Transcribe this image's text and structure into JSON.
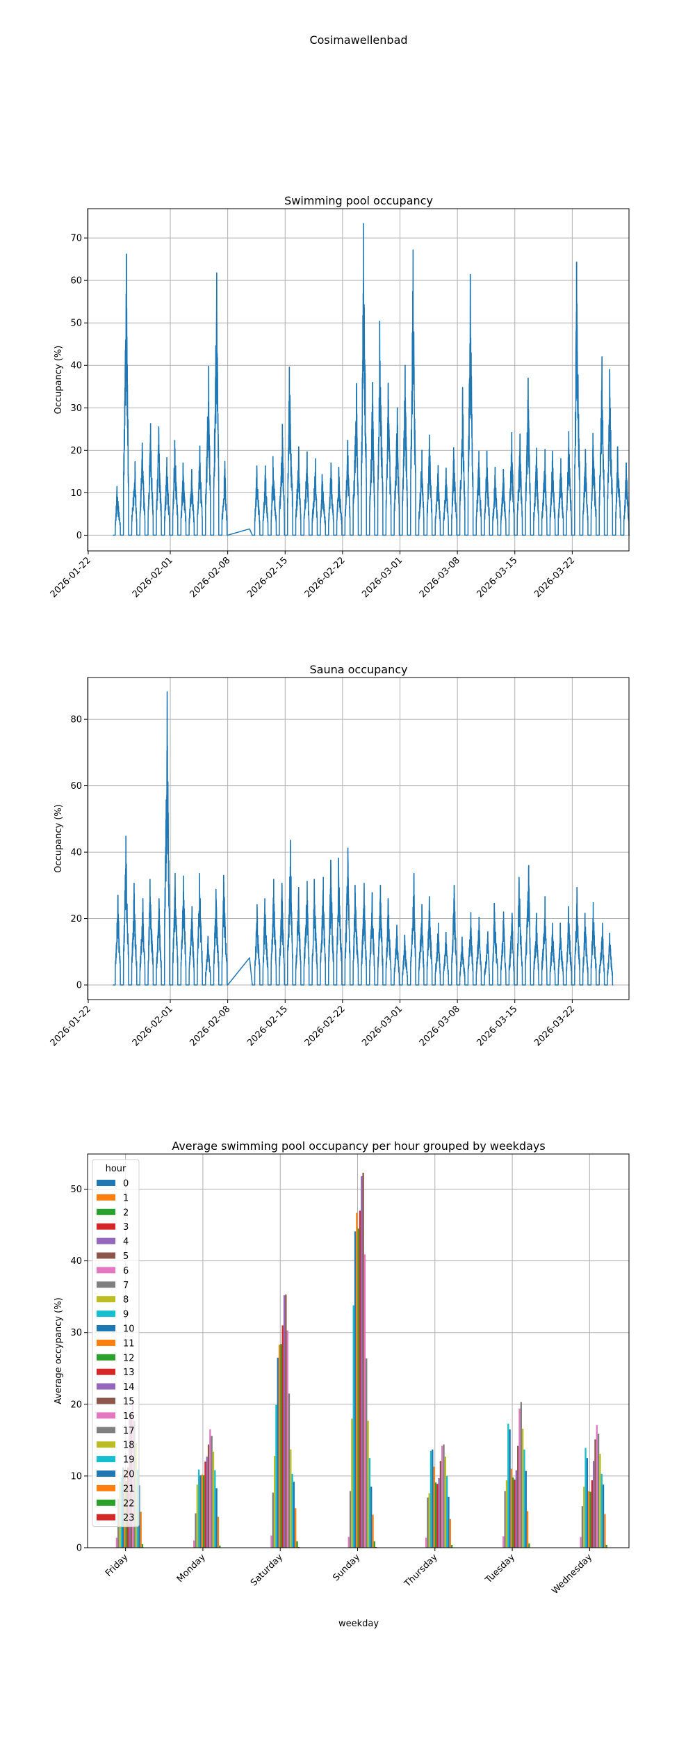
{
  "figure": {
    "suptitle": "Cosimawellenbad"
  },
  "chart_data": [
    {
      "id": "pool",
      "type": "line",
      "title": "Swimming pool occupancy",
      "xlabel": "",
      "ylabel": "Occupancy (%)",
      "x_type": "date",
      "xlim": [
        "2026-01-21T22:00",
        "2026-03-28T22:00"
      ],
      "ylim": [
        -3.7,
        76.9
      ],
      "xticks": [
        "2026-01-22",
        "2026-02-01",
        "2026-02-08",
        "2026-02-15",
        "2026-02-22",
        "2026-03-01",
        "2026-03-08",
        "2026-03-15",
        "2026-03-22"
      ],
      "yticks": [
        0,
        10,
        20,
        30,
        40,
        50,
        60,
        70
      ],
      "grid": true,
      "color": "#1f77b4",
      "series_note": "Intra-day occupancy; values below are the approximate daily maximum (%) per calendar day; nights are 0.",
      "start_date": "2026-01-25",
      "gap": {
        "from": "2026-02-08T00:00",
        "to": "2026-02-10T16:00",
        "from_value": 0,
        "to_value": 1.5
      },
      "daily_peaks": [
        {
          "date": "2026-01-25",
          "peak": 11.5
        },
        {
          "date": "2026-01-26",
          "peak": 66.2
        },
        {
          "date": "2026-01-27",
          "peak": 17.3
        },
        {
          "date": "2026-01-28",
          "peak": 21.7
        },
        {
          "date": "2026-01-29",
          "peak": 26.3
        },
        {
          "date": "2026-01-30",
          "peak": 25.5
        },
        {
          "date": "2026-01-31",
          "peak": 18.3
        },
        {
          "date": "2026-02-01",
          "peak": 22.3
        },
        {
          "date": "2026-02-02",
          "peak": 17.0
        },
        {
          "date": "2026-02-03",
          "peak": 15.5
        },
        {
          "date": "2026-02-04",
          "peak": 21.0
        },
        {
          "date": "2026-02-05",
          "peak": 39.8
        },
        {
          "date": "2026-02-06",
          "peak": 61.8
        },
        {
          "date": "2026-02-07",
          "peak": 17.4
        },
        {
          "date": "2026-02-08",
          "peak": 23.5
        },
        {
          "date": "2026-02-09",
          "peak": 20.8
        },
        {
          "date": "2026-02-10",
          "peak": 15.6
        },
        {
          "date": "2026-02-11",
          "peak": 16.3
        },
        {
          "date": "2026-02-12",
          "peak": 16.3
        },
        {
          "date": "2026-02-13",
          "peak": 18.5
        },
        {
          "date": "2026-02-14",
          "peak": 26.1
        },
        {
          "date": "2026-02-15",
          "peak": 39.6
        },
        {
          "date": "2026-02-16",
          "peak": 20.8
        },
        {
          "date": "2026-02-17",
          "peak": 19.6
        },
        {
          "date": "2026-02-18",
          "peak": 18.0
        },
        {
          "date": "2026-02-19",
          "peak": 14.3
        },
        {
          "date": "2026-02-20",
          "peak": 17.0
        },
        {
          "date": "2026-02-21",
          "peak": 16.0
        },
        {
          "date": "2026-02-22",
          "peak": 22.3
        },
        {
          "date": "2026-02-23",
          "peak": 35.7
        },
        {
          "date": "2026-02-24",
          "peak": 73.4
        },
        {
          "date": "2026-02-25",
          "peak": 36.0
        },
        {
          "date": "2026-02-26",
          "peak": 50.4
        },
        {
          "date": "2026-02-27",
          "peak": 35.8
        },
        {
          "date": "2026-02-28",
          "peak": 30.0
        },
        {
          "date": "2026-03-01",
          "peak": 40.0
        },
        {
          "date": "2026-03-02",
          "peak": 67.2
        },
        {
          "date": "2026-03-03",
          "peak": 20.0
        },
        {
          "date": "2026-03-04",
          "peak": 23.6
        },
        {
          "date": "2026-03-05",
          "peak": 16.4
        },
        {
          "date": "2026-03-06",
          "peak": 15.8
        },
        {
          "date": "2026-03-07",
          "peak": 20.6
        },
        {
          "date": "2026-03-08",
          "peak": 34.8
        },
        {
          "date": "2026-03-09",
          "peak": 61.4
        },
        {
          "date": "2026-03-10",
          "peak": 19.8
        },
        {
          "date": "2026-03-11",
          "peak": 19.8
        },
        {
          "date": "2026-03-12",
          "peak": 16.0
        },
        {
          "date": "2026-03-13",
          "peak": 15.5
        },
        {
          "date": "2026-03-14",
          "peak": 24.2
        },
        {
          "date": "2026-03-15",
          "peak": 23.8
        },
        {
          "date": "2026-03-16",
          "peak": 37.0
        },
        {
          "date": "2026-03-17",
          "peak": 20.5
        },
        {
          "date": "2026-03-18",
          "peak": 20.2
        },
        {
          "date": "2026-03-19",
          "peak": 19.8
        },
        {
          "date": "2026-03-20",
          "peak": 18.0
        },
        {
          "date": "2026-03-21",
          "peak": 24.4
        },
        {
          "date": "2026-03-22",
          "peak": 64.3
        },
        {
          "date": "2026-03-23",
          "peak": 20.2
        },
        {
          "date": "2026-03-24",
          "peak": 24.0
        },
        {
          "date": "2026-03-25",
          "peak": 42.0
        },
        {
          "date": "2026-03-26",
          "peak": 39.0
        },
        {
          "date": "2026-03-27",
          "peak": 20.8
        },
        {
          "date": "2026-03-28",
          "peak": 17.0
        }
      ]
    },
    {
      "id": "sauna",
      "type": "line",
      "title": "Sauna occupancy",
      "xlabel": "",
      "ylabel": "Occupancy (%)",
      "x_type": "date",
      "xlim": [
        "2026-01-21T22:00",
        "2026-03-28T22:00"
      ],
      "ylim": [
        -4.4,
        92.6
      ],
      "xticks": [
        "2026-01-22",
        "2026-02-01",
        "2026-02-08",
        "2026-02-15",
        "2026-02-22",
        "2026-03-01",
        "2026-03-08",
        "2026-03-15",
        "2026-03-22"
      ],
      "yticks": [
        0,
        20,
        40,
        60,
        80
      ],
      "grid": true,
      "color": "#1f77b4",
      "series_note": "Intra-day occupancy; values below are the approximate daily maximum (%) per calendar day; nights are 0.",
      "start_date": "2026-01-25",
      "gap": {
        "from": "2026-02-08T00:00",
        "to": "2026-02-10T16:00",
        "from_value": 0,
        "to_value": 8.2
      },
      "daily_peaks": [
        {
          "date": "2026-01-25",
          "peak": 27.0
        },
        {
          "date": "2026-01-26",
          "peak": 44.8
        },
        {
          "date": "2026-01-27",
          "peak": 30.6
        },
        {
          "date": "2026-01-28",
          "peak": 26.0
        },
        {
          "date": "2026-01-29",
          "peak": 31.8
        },
        {
          "date": "2026-01-30",
          "peak": 26.0
        },
        {
          "date": "2026-01-31",
          "peak": 88.3
        },
        {
          "date": "2026-02-01",
          "peak": 33.6
        },
        {
          "date": "2026-02-02",
          "peak": 32.8
        },
        {
          "date": "2026-02-03",
          "peak": 23.6
        },
        {
          "date": "2026-02-04",
          "peak": 33.6
        },
        {
          "date": "2026-02-05",
          "peak": 14.6
        },
        {
          "date": "2026-02-06",
          "peak": 28.8
        },
        {
          "date": "2026-02-07",
          "peak": 33.0
        },
        {
          "date": "2026-02-08",
          "peak": 30.0
        },
        {
          "date": "2026-02-09",
          "peak": 8.2
        },
        {
          "date": "2026-02-10",
          "peak": 34.2
        },
        {
          "date": "2026-02-11",
          "peak": 24.2
        },
        {
          "date": "2026-02-12",
          "peak": 26.0
        },
        {
          "date": "2026-02-13",
          "peak": 31.8
        },
        {
          "date": "2026-02-14",
          "peak": 30.6
        },
        {
          "date": "2026-02-15",
          "peak": 43.6
        },
        {
          "date": "2026-02-16",
          "peak": 29.4
        },
        {
          "date": "2026-02-17",
          "peak": 31.2
        },
        {
          "date": "2026-02-18",
          "peak": 31.8
        },
        {
          "date": "2026-02-19",
          "peak": 32.4
        },
        {
          "date": "2026-02-20",
          "peak": 37.6
        },
        {
          "date": "2026-02-21",
          "peak": 38.2
        },
        {
          "date": "2026-02-22",
          "peak": 41.2
        },
        {
          "date": "2026-02-23",
          "peak": 30.0
        },
        {
          "date": "2026-02-24",
          "peak": 30.6
        },
        {
          "date": "2026-02-25",
          "peak": 27.8
        },
        {
          "date": "2026-02-26",
          "peak": 30.0
        },
        {
          "date": "2026-02-27",
          "peak": 26.0
        },
        {
          "date": "2026-02-28",
          "peak": 18.0
        },
        {
          "date": "2026-03-01",
          "peak": 15.0
        },
        {
          "date": "2026-03-02",
          "peak": 33.6
        },
        {
          "date": "2026-03-03",
          "peak": 24.2
        },
        {
          "date": "2026-03-04",
          "peak": 26.6
        },
        {
          "date": "2026-03-05",
          "peak": 18.6
        },
        {
          "date": "2026-03-06",
          "peak": 15.8
        },
        {
          "date": "2026-03-07",
          "peak": 30.0
        },
        {
          "date": "2026-03-08",
          "peak": 14.4
        },
        {
          "date": "2026-03-09",
          "peak": 21.8
        },
        {
          "date": "2026-03-10",
          "peak": 20.4
        },
        {
          "date": "2026-03-11",
          "peak": 16.0
        },
        {
          "date": "2026-03-12",
          "peak": 24.6
        },
        {
          "date": "2026-03-13",
          "peak": 22.0
        },
        {
          "date": "2026-03-14",
          "peak": 21.6
        },
        {
          "date": "2026-03-15",
          "peak": 32.4
        },
        {
          "date": "2026-03-16",
          "peak": 36.0
        },
        {
          "date": "2026-03-17",
          "peak": 21.6
        },
        {
          "date": "2026-03-18",
          "peak": 26.6
        },
        {
          "date": "2026-03-19",
          "peak": 18.6
        },
        {
          "date": "2026-03-20",
          "peak": 18.6
        },
        {
          "date": "2026-03-21",
          "peak": 23.6
        },
        {
          "date": "2026-03-22",
          "peak": 29.4
        },
        {
          "date": "2026-03-23",
          "peak": 21.6
        },
        {
          "date": "2026-03-24",
          "peak": 24.8
        },
        {
          "date": "2026-03-25",
          "peak": 18.6
        },
        {
          "date": "2026-03-26",
          "peak": 15.6
        }
      ]
    },
    {
      "id": "weekday-hour",
      "type": "bar",
      "title": "Average swimming pool occupancy per hour grouped by weekdays",
      "xlabel": "weekday",
      "ylabel": "Average occypancy (%)",
      "ylim": [
        0,
        54.9
      ],
      "yticks": [
        0,
        10,
        20,
        30,
        40,
        50
      ],
      "grid": true,
      "legend": {
        "title": "hour",
        "placement": "top-left"
      },
      "categories": [
        "Friday",
        "Monday",
        "Saturday",
        "Sunday",
        "Thursday",
        "Tuesday",
        "Wednesday"
      ],
      "series": [
        {
          "name": "0",
          "color": "#1f77b4",
          "values": [
            0,
            0,
            0,
            0,
            0,
            0,
            0
          ]
        },
        {
          "name": "1",
          "color": "#ff7f0e",
          "values": [
            0,
            0,
            0,
            0,
            0,
            0,
            0
          ]
        },
        {
          "name": "2",
          "color": "#2ca02c",
          "values": [
            0,
            0,
            0,
            0,
            0,
            0,
            0
          ]
        },
        {
          "name": "3",
          "color": "#d62728",
          "values": [
            0,
            0,
            0,
            0,
            0,
            0,
            0
          ]
        },
        {
          "name": "4",
          "color": "#9467bd",
          "values": [
            0,
            0,
            0,
            0,
            0,
            0,
            0
          ]
        },
        {
          "name": "5",
          "color": "#8c564b",
          "values": [
            0,
            0,
            0,
            0,
            0,
            0,
            0
          ]
        },
        {
          "name": "6",
          "color": "#e377c2",
          "values": [
            1.4,
            1.0,
            1.7,
            1.5,
            1.4,
            1.6,
            1.5
          ]
        },
        {
          "name": "7",
          "color": "#7f7f7f",
          "values": [
            6.8,
            4.8,
            7.7,
            7.9,
            7.0,
            7.9,
            5.8
          ]
        },
        {
          "name": "8",
          "color": "#bcbd22",
          "values": [
            9.2,
            8.8,
            12.8,
            18.0,
            7.6,
            9.4,
            8.5
          ]
        },
        {
          "name": "9",
          "color": "#17becf",
          "values": [
            9.8,
            10.9,
            19.9,
            33.8,
            13.5,
            17.3,
            13.9
          ]
        },
        {
          "name": "10",
          "color": "#1f77b4",
          "values": [
            11.2,
            10.1,
            26.5,
            44.1,
            13.7,
            16.5,
            12.5
          ]
        },
        {
          "name": "11",
          "color": "#ff7f0e",
          "values": [
            10.9,
            10.2,
            28.3,
            46.7,
            11.3,
            11.0,
            7.9
          ]
        },
        {
          "name": "12",
          "color": "#2ca02c",
          "values": [
            9.3,
            10.1,
            28.4,
            44.5,
            9.1,
            9.8,
            7.8
          ]
        },
        {
          "name": "13",
          "color": "#d62728",
          "values": [
            11.2,
            12.0,
            31.0,
            47.0,
            8.9,
            9.5,
            9.4
          ]
        },
        {
          "name": "14",
          "color": "#9467bd",
          "values": [
            18.0,
            12.7,
            35.2,
            51.8,
            9.7,
            10.8,
            12.1
          ]
        },
        {
          "name": "15",
          "color": "#8c564b",
          "values": [
            18.7,
            14.4,
            35.3,
            52.3,
            12.1,
            14.2,
            15.1
          ]
        },
        {
          "name": "16",
          "color": "#e377c2",
          "values": [
            20.5,
            16.5,
            30.3,
            40.9,
            14.2,
            19.4,
            17.1
          ]
        },
        {
          "name": "17",
          "color": "#7f7f7f",
          "values": [
            17.7,
            15.6,
            21.5,
            26.4,
            14.4,
            20.3,
            15.9
          ]
        },
        {
          "name": "18",
          "color": "#bcbd22",
          "values": [
            14.6,
            13.4,
            13.7,
            17.7,
            12.7,
            16.6,
            13.1
          ]
        },
        {
          "name": "19",
          "color": "#17becf",
          "values": [
            10.9,
            10.8,
            10.3,
            12.5,
            10.0,
            13.7,
            10.3
          ]
        },
        {
          "name": "20",
          "color": "#1f77b4",
          "values": [
            8.7,
            8.3,
            9.2,
            8.5,
            7.1,
            10.7,
            8.8
          ]
        },
        {
          "name": "21",
          "color": "#ff7f0e",
          "values": [
            5.0,
            4.3,
            5.5,
            4.6,
            4.0,
            5.1,
            4.7
          ]
        },
        {
          "name": "22",
          "color": "#2ca02c",
          "values": [
            0.5,
            0.3,
            0.9,
            0.9,
            0.4,
            0.6,
            0.4
          ]
        },
        {
          "name": "23",
          "color": "#d62728",
          "values": [
            0.0,
            0.0,
            0.1,
            0.1,
            0.0,
            0.0,
            0.0
          ]
        }
      ]
    }
  ]
}
